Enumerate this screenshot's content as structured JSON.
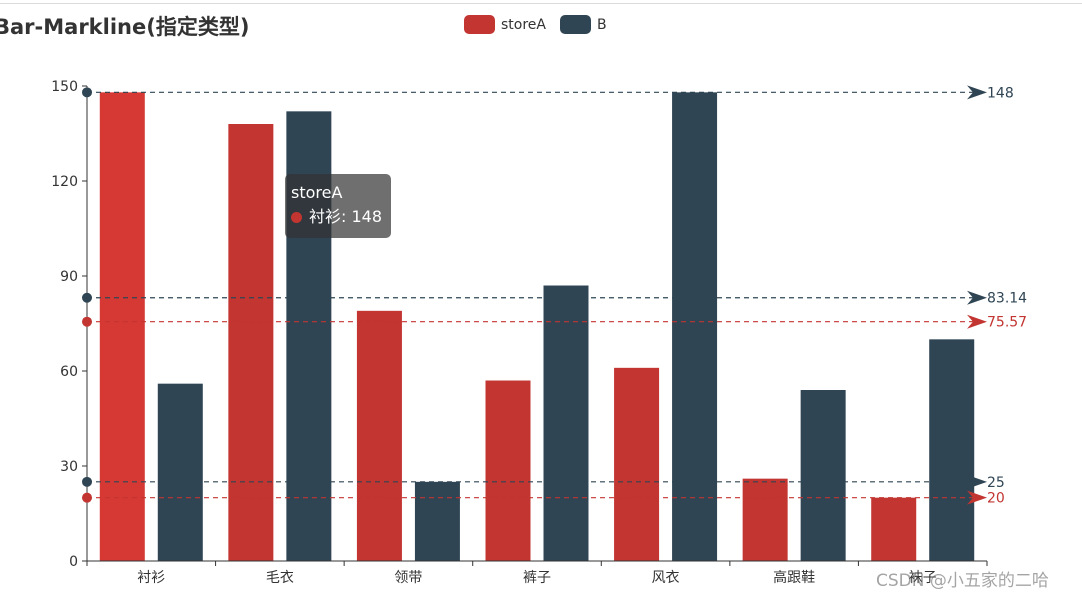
{
  "title": "Bar-Markline(指定类型)",
  "legend": [
    {
      "name": "storeA",
      "color": "#c23531"
    },
    {
      "name": "B",
      "color": "#2f4554"
    }
  ],
  "tooltip": {
    "series": "storeA",
    "category": "衬衫",
    "value": 148,
    "text": "衬衫: 148",
    "color": "#c23531"
  },
  "watermark": "CSDN @小五家的二哈",
  "chart_data": {
    "type": "bar",
    "title": "Bar-Markline(指定类型)",
    "categories": [
      "衬衫",
      "毛衣",
      "领带",
      "裤子",
      "风衣",
      "高跟鞋",
      "袜子"
    ],
    "series": [
      {
        "name": "storeA",
        "color": "#c23531",
        "values": [
          148,
          138,
          79,
          57,
          61,
          26,
          20
        ]
      },
      {
        "name": "B",
        "color": "#2f4554",
        "values": [
          56,
          142,
          25,
          87,
          148,
          54,
          70
        ]
      }
    ],
    "ylim": [
      0,
      150
    ],
    "yticks": [
      0,
      30,
      60,
      90,
      120,
      150
    ],
    "highlight": {
      "series": 0,
      "index": 0,
      "color": "#d63934"
    },
    "marklines": [
      {
        "series": "B",
        "type": "max",
        "value": 148,
        "label": "148",
        "color": "#2f4554"
      },
      {
        "series": "B",
        "type": "average",
        "value": 83.14,
        "label": "83.14",
        "color": "#2f4554"
      },
      {
        "series": "storeA",
        "type": "average",
        "value": 75.57,
        "label": "75.57",
        "color": "#c23531"
      },
      {
        "series": "B",
        "type": "min",
        "value": 25,
        "label": "25",
        "color": "#2f4554"
      },
      {
        "series": "storeA",
        "type": "min",
        "value": 20,
        "label": "20",
        "color": "#c23531"
      }
    ]
  }
}
